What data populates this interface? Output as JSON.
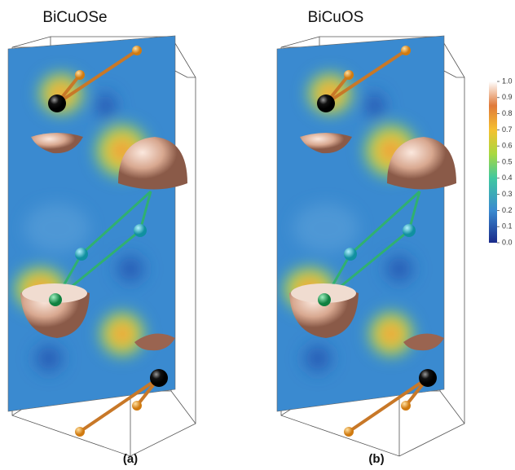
{
  "panels": [
    {
      "title": "BiCuOSe",
      "label": "(a)"
    },
    {
      "title": "BiCuOS",
      "label": "(b)"
    }
  ],
  "colorbar": {
    "range": [
      0,
      1
    ],
    "ticks": [
      {
        "value": 0,
        "label": "0.0"
      },
      {
        "value": 0.1,
        "label": "0.1"
      },
      {
        "value": 0.2,
        "label": "0.2"
      },
      {
        "value": 0.3,
        "label": "0.3"
      },
      {
        "value": 0.4,
        "label": "0.4"
      },
      {
        "value": 0.5,
        "label": "0.5"
      },
      {
        "value": 0.6,
        "label": "0.6"
      },
      {
        "value": 0.7,
        "label": "0.7"
      },
      {
        "value": 0.8,
        "label": "0.8"
      },
      {
        "value": 0.9,
        "label": "0.9"
      },
      {
        "value": 1,
        "label": "1.0"
      }
    ]
  }
}
